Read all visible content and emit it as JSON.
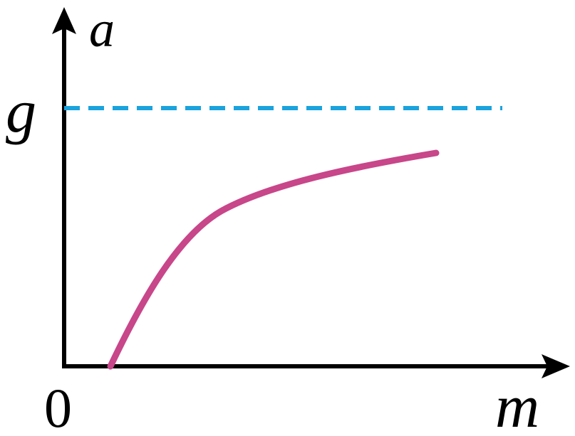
{
  "axes": {
    "y_label": "a",
    "x_label": "m",
    "origin": "0"
  },
  "reference": {
    "label": "g"
  }
}
